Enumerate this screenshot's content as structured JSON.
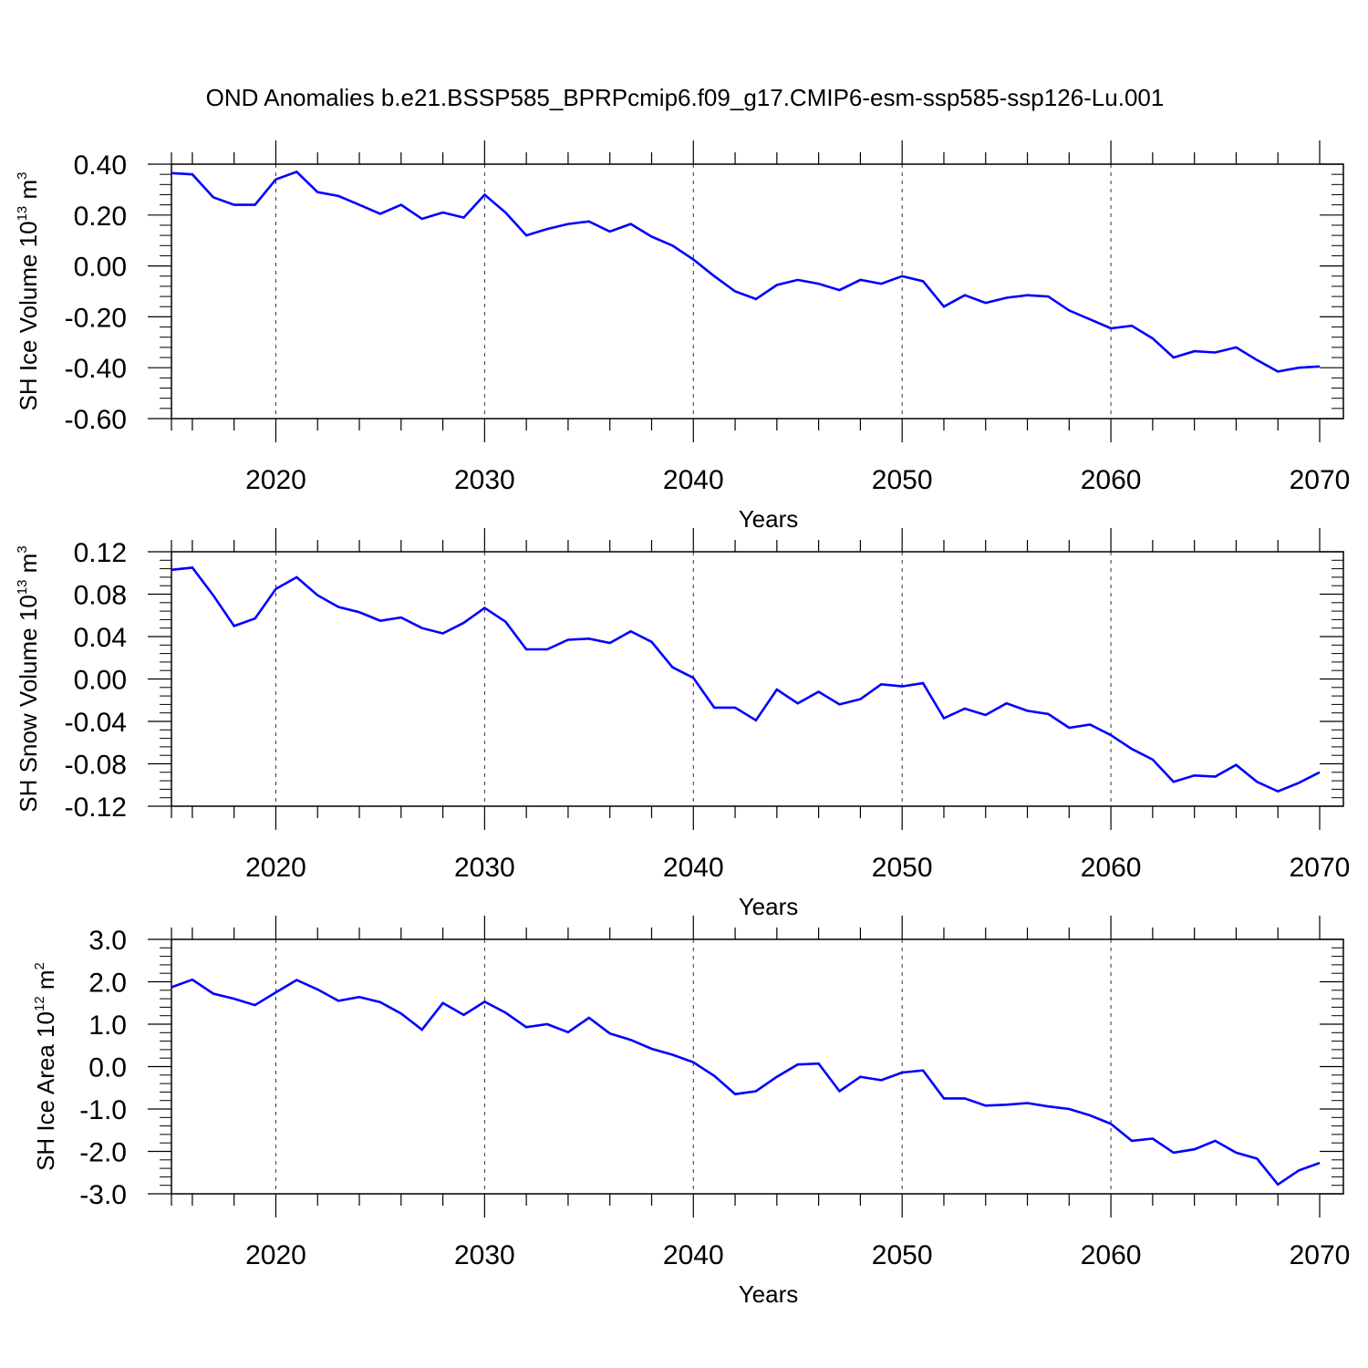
{
  "title": "OND Anomalies b.e21.BSSP585_BPRPcmip6.f09_g17.CMIP6-esm-ssp585-ssp126-Lu.001",
  "colors": {
    "line": "#0000ff",
    "axis": "#000000",
    "grid": "#000000"
  },
  "chart_data": [
    {
      "type": "line",
      "xlabel": "Years",
      "ylabel": {
        "prefix": "SH Ice Volume 10",
        "exp": "13",
        "unit": " m",
        "unit_exp": "3"
      },
      "xlim": [
        2015,
        2070
      ],
      "ylim": [
        -0.6,
        0.4
      ],
      "xticks": [
        2020,
        2030,
        2040,
        2050,
        2060,
        2070
      ],
      "xtick_labels": [
        "2020",
        "2030",
        "2040",
        "2050",
        "2060",
        "2070"
      ],
      "yticks": [
        -0.6,
        -0.4,
        -0.2,
        0.0,
        0.2,
        0.4
      ],
      "ytick_labels": [
        "-0.60",
        "-0.40",
        "-0.20",
        "0.00",
        "0.20",
        "0.40"
      ],
      "grid": "vertical dashed at major x ticks",
      "series": [
        {
          "x": [
            2015,
            2016,
            2017,
            2018,
            2019,
            2020,
            2021,
            2022,
            2023,
            2024,
            2025,
            2026,
            2027,
            2028,
            2029,
            2030,
            2031,
            2032,
            2033,
            2034,
            2035,
            2036,
            2037,
            2038,
            2039,
            2040,
            2041,
            2042,
            2043,
            2044,
            2045,
            2046,
            2047,
            2048,
            2049,
            2050,
            2051,
            2052,
            2053,
            2054,
            2055,
            2056,
            2057,
            2058,
            2059,
            2060,
            2061,
            2062,
            2063,
            2064,
            2065,
            2066,
            2067,
            2068,
            2069,
            2070
          ],
          "values": [
            0.365,
            0.36,
            0.27,
            0.24,
            0.24,
            0.34,
            0.37,
            0.29,
            0.275,
            0.24,
            0.205,
            0.24,
            0.185,
            0.21,
            0.19,
            0.28,
            0.21,
            0.12,
            0.145,
            0.165,
            0.175,
            0.135,
            0.165,
            0.115,
            0.08,
            0.025,
            -0.04,
            -0.1,
            -0.13,
            -0.075,
            -0.055,
            -0.07,
            -0.095,
            -0.055,
            -0.07,
            -0.04,
            -0.06,
            -0.16,
            -0.115,
            -0.145,
            -0.125,
            -0.115,
            -0.12,
            -0.175,
            -0.21,
            -0.245,
            -0.235,
            -0.285,
            -0.36,
            -0.335,
            -0.34,
            -0.32,
            -0.37,
            -0.415,
            -0.4,
            -0.395
          ]
        }
      ]
    },
    {
      "type": "line",
      "xlabel": "Years",
      "ylabel": {
        "prefix": "SH Snow Volume 10",
        "exp": "13",
        "unit": " m",
        "unit_exp": "3"
      },
      "xlim": [
        2015,
        2070
      ],
      "ylim": [
        -0.12,
        0.12
      ],
      "xticks": [
        2020,
        2030,
        2040,
        2050,
        2060,
        2070
      ],
      "xtick_labels": [
        "2020",
        "2030",
        "2040",
        "2050",
        "2060",
        "2070"
      ],
      "yticks": [
        -0.12,
        -0.08,
        -0.04,
        0.0,
        0.04,
        0.08,
        0.12
      ],
      "ytick_labels": [
        "-0.12",
        "-0.08",
        "-0.04",
        "0.00",
        "0.04",
        "0.08",
        "0.12"
      ],
      "grid": "vertical dashed at major x ticks",
      "series": [
        {
          "x": [
            2015,
            2016,
            2017,
            2018,
            2019,
            2020,
            2021,
            2022,
            2023,
            2024,
            2025,
            2026,
            2027,
            2028,
            2029,
            2030,
            2031,
            2032,
            2033,
            2034,
            2035,
            2036,
            2037,
            2038,
            2039,
            2040,
            2041,
            2042,
            2043,
            2044,
            2045,
            2046,
            2047,
            2048,
            2049,
            2050,
            2051,
            2052,
            2053,
            2054,
            2055,
            2056,
            2057,
            2058,
            2059,
            2060,
            2061,
            2062,
            2063,
            2064,
            2065,
            2066,
            2067,
            2068,
            2069,
            2070
          ],
          "values": [
            0.103,
            0.105,
            0.079,
            0.05,
            0.057,
            0.085,
            0.096,
            0.079,
            0.068,
            0.063,
            0.055,
            0.058,
            0.048,
            0.043,
            0.053,
            0.067,
            0.054,
            0.028,
            0.028,
            0.037,
            0.038,
            0.034,
            0.045,
            0.035,
            0.011,
            0.001,
            -0.027,
            -0.027,
            -0.039,
            -0.01,
            -0.023,
            -0.012,
            -0.024,
            -0.019,
            -0.005,
            -0.007,
            -0.004,
            -0.037,
            -0.028,
            -0.034,
            -0.023,
            -0.03,
            -0.033,
            -0.046,
            -0.043,
            -0.053,
            -0.066,
            -0.076,
            -0.097,
            -0.091,
            -0.092,
            -0.081,
            -0.097,
            -0.106,
            -0.098,
            -0.088
          ]
        }
      ]
    },
    {
      "type": "line",
      "xlabel": "Years",
      "ylabel": {
        "prefix": "SH Ice Area 10",
        "exp": "12",
        "unit": " m",
        "unit_exp": "2"
      },
      "xlim": [
        2015,
        2070
      ],
      "ylim": [
        -3.0,
        3.0
      ],
      "xticks": [
        2020,
        2030,
        2040,
        2050,
        2060,
        2070
      ],
      "xtick_labels": [
        "2020",
        "2030",
        "2040",
        "2050",
        "2060",
        "2070"
      ],
      "yticks": [
        -3.0,
        -2.0,
        -1.0,
        0.0,
        1.0,
        2.0,
        3.0
      ],
      "ytick_labels": [
        "-3.0",
        "-2.0",
        "-1.0",
        "0.0",
        "1.0",
        "2.0",
        "3.0"
      ],
      "grid": "vertical dashed at major x ticks",
      "series": [
        {
          "x": [
            2015,
            2016,
            2017,
            2018,
            2019,
            2020,
            2021,
            2022,
            2023,
            2024,
            2025,
            2026,
            2027,
            2028,
            2029,
            2030,
            2031,
            2032,
            2033,
            2034,
            2035,
            2036,
            2037,
            2038,
            2039,
            2040,
            2041,
            2042,
            2043,
            2044,
            2045,
            2046,
            2047,
            2048,
            2049,
            2050,
            2051,
            2052,
            2053,
            2054,
            2055,
            2056,
            2057,
            2058,
            2059,
            2060,
            2061,
            2062,
            2063,
            2064,
            2065,
            2066,
            2067,
            2068,
            2069,
            2070
          ],
          "values": [
            1.87,
            2.05,
            1.72,
            1.6,
            1.45,
            1.75,
            2.04,
            1.82,
            1.55,
            1.64,
            1.52,
            1.25,
            0.87,
            1.5,
            1.22,
            1.53,
            1.27,
            0.93,
            1.0,
            0.81,
            1.15,
            0.78,
            0.63,
            0.42,
            0.28,
            0.1,
            -0.22,
            -0.65,
            -0.58,
            -0.24,
            0.05,
            0.07,
            -0.58,
            -0.24,
            -0.32,
            -0.14,
            -0.09,
            -0.75,
            -0.75,
            -0.92,
            -0.9,
            -0.86,
            -0.94,
            -1.0,
            -1.15,
            -1.35,
            -1.75,
            -1.7,
            -2.03,
            -1.95,
            -1.75,
            -2.03,
            -2.17,
            -2.78,
            -2.45,
            -2.27
          ]
        }
      ]
    }
  ]
}
